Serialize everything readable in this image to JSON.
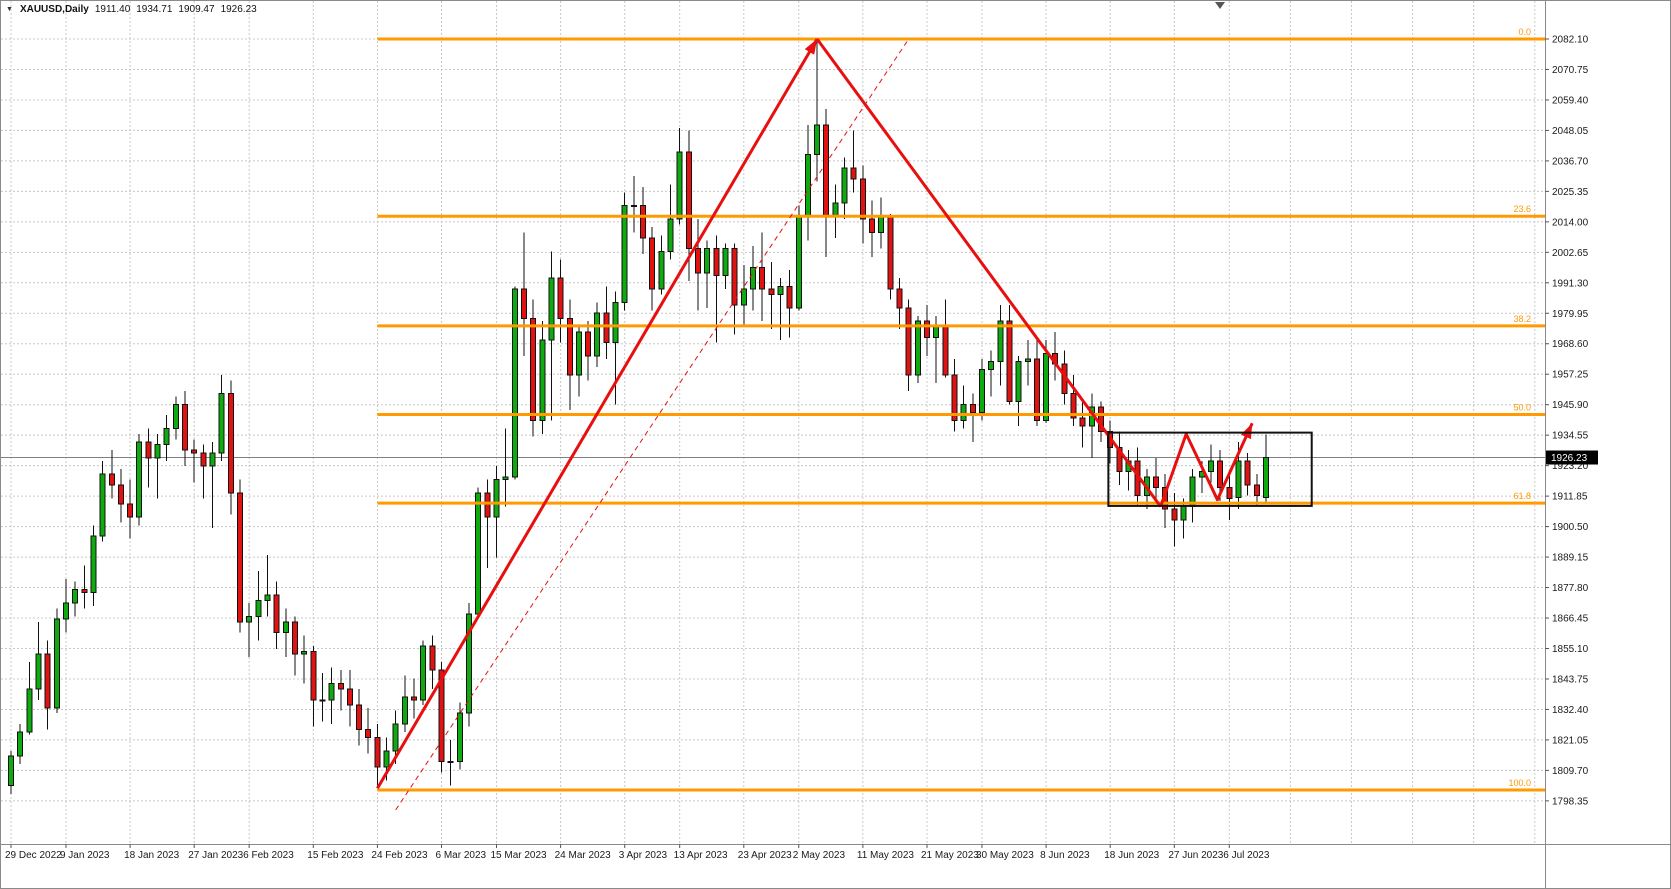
{
  "header": {
    "dropdown_icon": "▼",
    "symbol": "XAUUSD,Daily",
    "open": "1911.40",
    "high": "1934.71",
    "low": "1909.47",
    "close": "1926.23"
  },
  "colors": {
    "bull": "#0faa0f",
    "bear": "#e11212",
    "outline": "#111111",
    "grid": "#c8c8c8",
    "fib": "#ff9a00",
    "trend": "#e80f0f",
    "rect": "#111111",
    "axis_text": "#1a1a1a",
    "axis_line": "#8a8a8a",
    "badge_bg": "#000000",
    "badge_text": "#ffffff",
    "current_line": "#808080",
    "shift_marker": "#555555"
  },
  "chart_data": {
    "type": "candlestick",
    "symbol": "XAUUSD",
    "timeframe": "Daily",
    "current_price": 1926.23,
    "y_axis_labels": [
      2082.1,
      2070.75,
      2059.4,
      2048.05,
      2036.7,
      2025.35,
      2014.0,
      2002.65,
      1991.3,
      1979.95,
      1968.6,
      1957.25,
      1945.9,
      1934.55,
      1923.2,
      1911.85,
      1900.5,
      1889.15,
      1877.8,
      1866.45,
      1855.1,
      1843.75,
      1832.4,
      1821.05,
      1809.7,
      1798.35
    ],
    "x_labels": [
      {
        "index": 0,
        "label": "29 Dec 2022"
      },
      {
        "index": 6,
        "label": "9 Jan 2023"
      },
      {
        "index": 13,
        "label": "18 Jan 2023"
      },
      {
        "index": 20,
        "label": "27 Jan 2023"
      },
      {
        "index": 26,
        "label": "6 Feb 2023"
      },
      {
        "index": 33,
        "label": "15 Feb 2023"
      },
      {
        "index": 40,
        "label": "24 Feb 2023"
      },
      {
        "index": 47,
        "label": "6 Mar 2023"
      },
      {
        "index": 53,
        "label": "15 Mar 2023"
      },
      {
        "index": 60,
        "label": "24 Mar 2023"
      },
      {
        "index": 67,
        "label": "3 Apr 2023"
      },
      {
        "index": 73,
        "label": "13 Apr 2023"
      },
      {
        "index": 80,
        "label": "23 Apr 2023"
      },
      {
        "index": 86,
        "label": "2 May 2023"
      },
      {
        "index": 93,
        "label": "11 May 2023"
      },
      {
        "index": 100,
        "label": "21 May 2023"
      },
      {
        "index": 106,
        "label": "30 May 2023"
      },
      {
        "index": 113,
        "label": "8 Jun 2023"
      },
      {
        "index": 120,
        "label": "18 Jun 2023"
      },
      {
        "index": 127,
        "label": "27 Jun 2023"
      },
      {
        "index": 133,
        "label": "6 Jul 2023"
      }
    ],
    "candles": [
      [
        1804,
        1817,
        1801,
        1815
      ],
      [
        1815,
        1827,
        1812,
        1824
      ],
      [
        1824,
        1850,
        1823,
        1840
      ],
      [
        1840,
        1865,
        1836,
        1853
      ],
      [
        1853,
        1858,
        1825,
        1833
      ],
      [
        1833,
        1870,
        1831,
        1866
      ],
      [
        1866,
        1881,
        1861,
        1872
      ],
      [
        1872,
        1880,
        1867,
        1877
      ],
      [
        1877,
        1886,
        1870,
        1876
      ],
      [
        1876,
        1901,
        1871,
        1897
      ],
      [
        1897,
        1925,
        1895,
        1920
      ],
      [
        1920,
        1929,
        1911,
        1916
      ],
      [
        1916,
        1922,
        1902,
        1909
      ],
      [
        1909,
        1918,
        1896,
        1904
      ],
      [
        1904,
        1935,
        1901,
        1932
      ],
      [
        1932,
        1937,
        1915,
        1926
      ],
      [
        1926,
        1935,
        1911,
        1931
      ],
      [
        1931,
        1942,
        1925,
        1937
      ],
      [
        1937,
        1949,
        1933,
        1946
      ],
      [
        1946,
        1951,
        1923,
        1929
      ],
      [
        1929,
        1933,
        1917,
        1928
      ],
      [
        1928,
        1931,
        1911,
        1923
      ],
      [
        1923,
        1932,
        1900,
        1928
      ],
      [
        1928,
        1957,
        1925,
        1950
      ],
      [
        1950,
        1955,
        1905,
        1913
      ],
      [
        1913,
        1918,
        1861,
        1865
      ],
      [
        1865,
        1872,
        1852,
        1867
      ],
      [
        1867,
        1884,
        1858,
        1873
      ],
      [
        1873,
        1890,
        1867,
        1875
      ],
      [
        1875,
        1880,
        1855,
        1861
      ],
      [
        1861,
        1870,
        1852,
        1865
      ],
      [
        1865,
        1867,
        1845,
        1853
      ],
      [
        1853,
        1860,
        1842,
        1854
      ],
      [
        1854,
        1856,
        1826,
        1836
      ],
      [
        1836,
        1846,
        1828,
        1836
      ],
      [
        1836,
        1848,
        1827,
        1842
      ],
      [
        1842,
        1847,
        1832,
        1840
      ],
      [
        1840,
        1847,
        1826,
        1834
      ],
      [
        1834,
        1840,
        1819,
        1825
      ],
      [
        1825,
        1833,
        1816,
        1822
      ],
      [
        1822,
        1827,
        1804,
        1811
      ],
      [
        1811,
        1822,
        1806,
        1817
      ],
      [
        1817,
        1832,
        1812,
        1827
      ],
      [
        1827,
        1845,
        1824,
        1837
      ],
      [
        1837,
        1844,
        1829,
        1836
      ],
      [
        1836,
        1858,
        1834,
        1856
      ],
      [
        1856,
        1860,
        1840,
        1847
      ],
      [
        1847,
        1850,
        1809,
        1813
      ],
      [
        1813,
        1821,
        1804,
        1813
      ],
      [
        1813,
        1835,
        1810,
        1831
      ],
      [
        1831,
        1872,
        1826,
        1868
      ],
      [
        1868,
        1915,
        1866,
        1913
      ],
      [
        1913,
        1918,
        1885,
        1904
      ],
      [
        1904,
        1923,
        1889,
        1918
      ],
      [
        1918,
        1937,
        1908,
        1919
      ],
      [
        1919,
        1990,
        1918,
        1989
      ],
      [
        1989,
        2010,
        1964,
        1978
      ],
      [
        1978,
        1985,
        1934,
        1940
      ],
      [
        1940,
        1977,
        1935,
        1970
      ],
      [
        1970,
        2003,
        1940,
        1993
      ],
      [
        1993,
        2000,
        1969,
        1978
      ],
      [
        1978,
        1985,
        1944,
        1957
      ],
      [
        1957,
        1975,
        1949,
        1973
      ],
      [
        1973,
        1977,
        1955,
        1964
      ],
      [
        1964,
        1984,
        1960,
        1980
      ],
      [
        1980,
        1990,
        1963,
        1969
      ],
      [
        1969,
        1988,
        1946,
        1984
      ],
      [
        1984,
        2025,
        1981,
        2020
      ],
      [
        2020,
        2031,
        2010,
        2020
      ],
      [
        2020,
        2027,
        2002,
        2008
      ],
      [
        2008,
        2012,
        1981,
        1989
      ],
      [
        1989,
        2009,
        1987,
        2003
      ],
      [
        2003,
        2028,
        2000,
        2015
      ],
      [
        2015,
        2049,
        2013,
        2040
      ],
      [
        2040,
        2048,
        1992,
        2004
      ],
      [
        2004,
        2015,
        1981,
        1995
      ],
      [
        1995,
        2007,
        1982,
        2004
      ],
      [
        2004,
        2009,
        1969,
        1994
      ],
      [
        1994,
        2006,
        1989,
        2004
      ],
      [
        2004,
        2006,
        1972,
        1983
      ],
      [
        1983,
        1998,
        1975,
        1989
      ],
      [
        1989,
        2005,
        1981,
        1997
      ],
      [
        1997,
        2010,
        1977,
        1989
      ],
      [
        1989,
        1999,
        1974,
        1987
      ],
      [
        1987,
        1993,
        1970,
        1990
      ],
      [
        1990,
        1996,
        1971,
        1982
      ],
      [
        1982,
        2020,
        1981,
        2016
      ],
      [
        2016,
        2050,
        2007,
        2039
      ],
      [
        2039,
        2081,
        2029,
        2050
      ],
      [
        2050,
        2056,
        2001,
        2016
      ],
      [
        2016,
        2028,
        2008,
        2021
      ],
      [
        2021,
        2038,
        2015,
        2034
      ],
      [
        2034,
        2048,
        2025,
        2030
      ],
      [
        2030,
        2035,
        2006,
        2015
      ],
      [
        2015,
        2022,
        2001,
        2010
      ],
      [
        2010,
        2023,
        2004,
        2016
      ],
      [
        2016,
        2017,
        1985,
        1989
      ],
      [
        1989,
        1993,
        1974,
        1982
      ],
      [
        1982,
        1985,
        1951,
        1957
      ],
      [
        1957,
        1979,
        1954,
        1977
      ],
      [
        1977,
        1983,
        1964,
        1971
      ],
      [
        1971,
        1979,
        1954,
        1975
      ],
      [
        1975,
        1985,
        1956,
        1957
      ],
      [
        1957,
        1963,
        1936,
        1940
      ],
      [
        1940,
        1953,
        1937,
        1946
      ],
      [
        1946,
        1950,
        1932,
        1943
      ],
      [
        1943,
        1963,
        1940,
        1959
      ],
      [
        1959,
        1966,
        1949,
        1962
      ],
      [
        1962,
        1983,
        1953,
        1977
      ],
      [
        1977,
        1983,
        1946,
        1947
      ],
      [
        1947,
        1964,
        1938,
        1962
      ],
      [
        1962,
        1970,
        1953,
        1963
      ],
      [
        1963,
        1970,
        1938,
        1940
      ],
      [
        1940,
        1970,
        1939,
        1965
      ],
      [
        1965,
        1973,
        1955,
        1961
      ],
      [
        1961,
        1966,
        1946,
        1950
      ],
      [
        1950,
        1957,
        1938,
        1941
      ],
      [
        1941,
        1948,
        1930,
        1938
      ],
      [
        1938,
        1950,
        1926,
        1945
      ],
      [
        1945,
        1947,
        1932,
        1936
      ],
      [
        1936,
        1940,
        1924,
        1930
      ],
      [
        1930,
        1936,
        1916,
        1921
      ],
      [
        1921,
        1929,
        1914,
        1925
      ],
      [
        1925,
        1930,
        1908,
        1912
      ],
      [
        1912,
        1922,
        1907,
        1919
      ],
      [
        1919,
        1926,
        1911,
        1915
      ],
      [
        1915,
        1920,
        1900,
        1907
      ],
      [
        1907,
        1913,
        1893,
        1903
      ],
      [
        1903,
        1911,
        1896,
        1908
      ],
      [
        1908,
        1922,
        1902,
        1919
      ],
      [
        1919,
        1925,
        1913,
        1921
      ],
      [
        1921,
        1931,
        1917,
        1925
      ],
      [
        1925,
        1929,
        1910,
        1915
      ],
      [
        1915,
        1921,
        1903,
        1911
      ],
      [
        1911.4,
        1932,
        1907,
        1925
      ],
      [
        1925,
        1928,
        1912,
        1916
      ],
      [
        1916,
        1920,
        1908,
        1912
      ],
      [
        1911.4,
        1934.71,
        1909.47,
        1926.23
      ]
    ],
    "fib": {
      "start_index": 40,
      "levels": [
        {
          "label": "0.0",
          "price": 2082.1
        },
        {
          "label": "23.6",
          "price": 2016.09
        },
        {
          "label": "38.2",
          "price": 1975.25
        },
        {
          "label": "50.0",
          "price": 1942.25
        },
        {
          "label": "61.8",
          "price": 1909.25
        },
        {
          "label": "100.0",
          "price": 1802.4
        }
      ]
    },
    "trendlines": [
      {
        "name": "impulse-up",
        "points": [
          [
            40,
            1803
          ],
          [
            88,
            2082.1
          ]
        ],
        "width": 3,
        "style": "solid",
        "arrow_end": true
      },
      {
        "name": "correction-down",
        "points": [
          [
            88,
            2082.1
          ],
          [
            125.5,
            1908
          ]
        ],
        "width": 3,
        "style": "solid",
        "arrow_end": false
      },
      {
        "name": "projection-zigzag",
        "points": [
          [
            125.5,
            1908
          ],
          [
            128.3,
            1935
          ],
          [
            131.7,
            1910.5
          ],
          [
            135.5,
            1939
          ]
        ],
        "width": 3,
        "style": "solid",
        "arrow_end": true
      },
      {
        "name": "channel-dashed",
        "points": [
          [
            42,
            1795
          ],
          [
            98,
            2082.1
          ]
        ],
        "width": 1,
        "style": "dashed",
        "arrow_end": false
      }
    ],
    "rectangle": {
      "from_index": 119.8,
      "to_index": 142,
      "top_price": 1935.5,
      "bottom_price": 1908.2
    }
  }
}
